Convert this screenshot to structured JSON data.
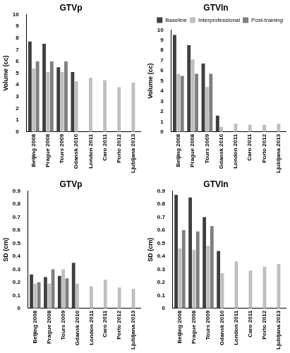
{
  "chart_data": [
    {
      "type": "bar",
      "title": "GTVp",
      "y_label": "Volume (cc)",
      "categories": [
        "Beijing 2008",
        "Prague 2008",
        "Tours 2009",
        "Gdansk 2010",
        "London 2011",
        "Caro 2011",
        "Porto 2012",
        "Ljubljana 2013"
      ],
      "series": [
        {
          "name": "Baseline",
          "color": "#3f3f3f",
          "values": [
            7.7,
            7.5,
            5.5,
            5.1,
            null,
            null,
            null,
            null
          ]
        },
        {
          "name": "Interprofessional",
          "color": "#bfbfbf",
          "values": [
            5.4,
            5.1,
            5.1,
            4.3,
            4.6,
            4.4,
            3.8,
            4.2
          ]
        },
        {
          "name": "Post-training",
          "color": "#7f7f7f",
          "values": [
            6.0,
            6.0,
            6.0,
            null,
            null,
            null,
            null,
            null
          ]
        }
      ],
      "ylim": [
        0,
        10
      ],
      "yticks": [
        0,
        1,
        2,
        3,
        4,
        5,
        6,
        7,
        8,
        9,
        10
      ],
      "grid": false
    },
    {
      "type": "bar",
      "title": "GTVln",
      "y_label": "Volume (cc)",
      "categories": [
        "Beijing 2008",
        "Prague 2008",
        "Tours 2009",
        "Gdansk 2010",
        "London 2011",
        "Caro 2011",
        "Porto 2012",
        "Ljubljana 2013"
      ],
      "series": [
        {
          "name": "Baseline",
          "color": "#3f3f3f",
          "values": [
            9.5,
            8.5,
            6.7,
            1.6,
            null,
            null,
            null,
            null
          ]
        },
        {
          "name": "Interprofessional",
          "color": "#bfbfbf",
          "values": [
            5.7,
            7.1,
            4.4,
            0.5,
            0.8,
            0.7,
            0.7,
            0.8
          ]
        },
        {
          "name": "Post-training",
          "color": "#7f7f7f",
          "values": [
            5.5,
            5.7,
            5.7,
            null,
            null,
            null,
            null,
            null
          ]
        }
      ],
      "ylim": [
        0,
        10
      ],
      "yticks": [
        0,
        1,
        2,
        3,
        4,
        5,
        6,
        7,
        8,
        9,
        10
      ],
      "grid": false,
      "legend": "top"
    },
    {
      "type": "bar",
      "title": "GTVp",
      "y_label": "SD (cm)",
      "categories": [
        "Beijing 2008",
        "Prague 2008",
        "Tours 2009",
        "Gdansk 2010",
        "London 2011",
        "Caro 2011",
        "Porto 2012",
        "Ljubljana 2013"
      ],
      "series": [
        {
          "name": "Baseline",
          "color": "#3f3f3f",
          "values": [
            0.26,
            0.24,
            0.25,
            0.35,
            null,
            null,
            null,
            null
          ]
        },
        {
          "name": "Interprofessional",
          "color": "#bfbfbf",
          "values": [
            0.19,
            0.19,
            0.3,
            0.19,
            0.17,
            0.22,
            0.16,
            0.15
          ]
        },
        {
          "name": "Post-training",
          "color": "#7f7f7f",
          "values": [
            0.2,
            0.3,
            0.23,
            null,
            null,
            null,
            null,
            null
          ]
        }
      ],
      "ylim": [
        0,
        0.9
      ],
      "yticks": [
        0,
        0.1,
        0.2,
        0.3,
        0.4,
        0.5,
        0.6,
        0.7,
        0.8,
        0.9
      ],
      "grid": false
    },
    {
      "type": "bar",
      "title": "GTVln",
      "y_label": "SD (cm)",
      "categories": [
        "Beijing 2008",
        "Prague 2008",
        "Tours 2009",
        "Gdansk 2010",
        "London 2011",
        "Caro 2011",
        "Porto 2012",
        "Ljubljana 2013"
      ],
      "series": [
        {
          "name": "Baseline",
          "color": "#3f3f3f",
          "values": [
            0.87,
            0.85,
            0.7,
            0.44,
            null,
            null,
            null,
            null
          ]
        },
        {
          "name": "Interprofessional",
          "color": "#bfbfbf",
          "values": [
            0.46,
            0.45,
            0.48,
            0.27,
            0.36,
            0.29,
            0.32,
            0.34
          ]
        },
        {
          "name": "Post-training",
          "color": "#7f7f7f",
          "values": [
            0.6,
            0.59,
            0.63,
            null,
            null,
            null,
            null,
            null
          ]
        }
      ],
      "ylim": [
        0,
        0.9
      ],
      "yticks": [
        0,
        0.1,
        0.2,
        0.3,
        0.4,
        0.5,
        0.6,
        0.7,
        0.8,
        0.9
      ],
      "grid": false
    }
  ]
}
